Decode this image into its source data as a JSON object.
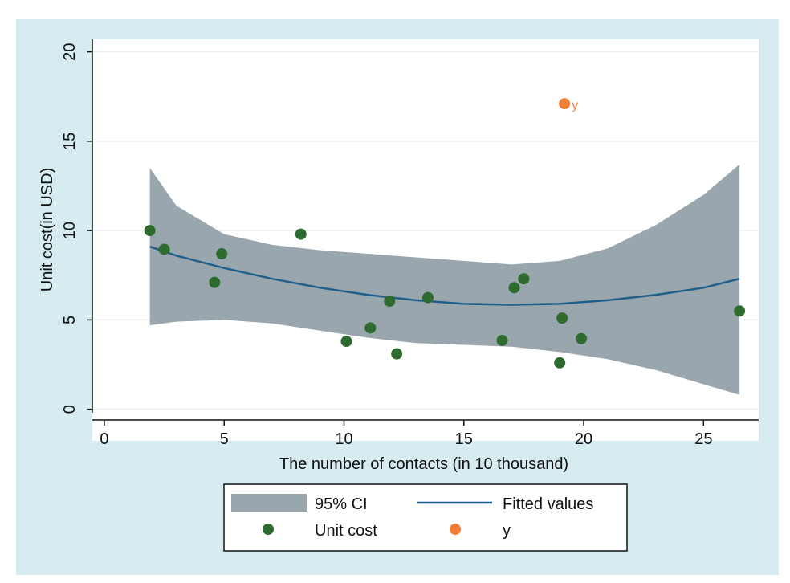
{
  "chart_data": {
    "type": "scatter",
    "xlabel": "The number of contacts (in 10 thousand)",
    "ylabel": "Unit cost(in USD)",
    "xlim": [
      -0.5,
      27.3
    ],
    "ylim": [
      -0.6,
      20.7
    ],
    "xticks": [
      0,
      5,
      10,
      15,
      20,
      25
    ],
    "yticks": [
      0,
      5,
      10,
      15,
      20
    ],
    "grid": true,
    "legend_position": "bottom",
    "colors": {
      "ci_band": "#9aa6ad",
      "fit_line": "#1f5f8b",
      "unit_cost": "#2e6b2e",
      "y_point": "#f07f36"
    },
    "series": [
      {
        "name": "95% CI",
        "kind": "band",
        "x": [
          1.9,
          3,
          5,
          7,
          9,
          11,
          13,
          15,
          17,
          19,
          21,
          23,
          25,
          26.5
        ],
        "lower": [
          4.7,
          4.9,
          5.0,
          4.8,
          4.4,
          4.0,
          3.7,
          3.6,
          3.5,
          3.2,
          2.8,
          2.2,
          1.4,
          0.8
        ],
        "upper": [
          13.5,
          11.4,
          9.8,
          9.2,
          8.9,
          8.7,
          8.5,
          8.3,
          8.1,
          8.3,
          9.0,
          10.3,
          12.0,
          13.7
        ]
      },
      {
        "name": "Fitted values",
        "kind": "line",
        "x": [
          1.9,
          3,
          5,
          7,
          9,
          11,
          13,
          15,
          17,
          19,
          21,
          23,
          25,
          26.5
        ],
        "y": [
          9.1,
          8.6,
          7.9,
          7.3,
          6.8,
          6.4,
          6.1,
          5.9,
          5.85,
          5.9,
          6.1,
          6.4,
          6.8,
          7.3
        ]
      },
      {
        "name": "Unit cost",
        "kind": "points",
        "x": [
          1.9,
          2.5,
          4.6,
          4.9,
          8.2,
          10.1,
          11.1,
          11.9,
          12.2,
          13.5,
          16.6,
          17.1,
          17.5,
          19.0,
          19.1,
          19.9,
          26.5
        ],
        "y": [
          10.0,
          8.95,
          7.1,
          8.7,
          9.8,
          3.8,
          4.55,
          6.05,
          3.1,
          6.25,
          3.85,
          6.8,
          7.3,
          2.6,
          5.1,
          3.95,
          5.5
        ]
      },
      {
        "name": "y",
        "kind": "points",
        "x": [
          19.2
        ],
        "y": [
          17.1
        ],
        "point_label": "y"
      }
    ],
    "legend": {
      "ci_label": "95% CI",
      "fit_label": "Fitted values",
      "unit_label": "Unit cost",
      "y_label": "y"
    }
  }
}
